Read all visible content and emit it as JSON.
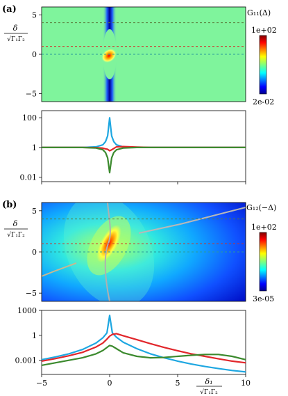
{
  "panel_labels": [
    "(a)",
    "(b)"
  ],
  "ylabel_top": {
    "numerator": "δ",
    "denominator": "√Γ₁Γ₂"
  },
  "xlabel": {
    "numerator": "δ₁",
    "denominator": "√Γ₁Γ₂"
  },
  "colorbar_a": {
    "title": "G₁₁(Δ)",
    "max_label": "1e+02",
    "min_label": "2e-02"
  },
  "colorbar_b": {
    "title": "G₁₂(−Δ)",
    "max_label": "1e+02",
    "min_label": "3e-05"
  },
  "colors": {
    "blue": "#1ea7e1",
    "red": "#e1262b",
    "green": "#3c8a2e",
    "gray": "#a8a8a8",
    "dash_green": "#5a7a3a",
    "dash_red": "#d0302a",
    "dash_teal": "#2a9a9a"
  },
  "chart_data": [
    {
      "type": "heatmap",
      "panel": "(a)",
      "quantity": "G₁₁(Δ)",
      "xlim": [
        -5,
        10
      ],
      "ylim": [
        -6,
        6
      ],
      "yticks": [
        -5,
        0,
        5
      ],
      "color_scale": "log",
      "color_range": [
        0.02,
        100
      ],
      "dashed_lines_y": [
        4,
        1,
        0
      ],
      "colormap": "jet"
    },
    {
      "type": "line",
      "panel": "(a) lower",
      "ylog": true,
      "ylim": [
        0.005,
        300
      ],
      "yticks": [
        0.01,
        1,
        100
      ],
      "ytick_labels": [
        "0.01",
        "1",
        "100"
      ],
      "x": [
        -5,
        -3,
        -2,
        -1,
        -0.5,
        -0.3,
        -0.15,
        0,
        0.15,
        0.3,
        0.5,
        1,
        2,
        3,
        5,
        7.5,
        10
      ],
      "series": [
        {
          "color": "blue",
          "values": [
            1,
            1,
            1,
            1.1,
            1.5,
            2.5,
            6,
            100,
            6,
            2.5,
            1.5,
            1.1,
            1,
            1,
            1,
            1,
            1
          ]
        },
        {
          "color": "red",
          "values": [
            1,
            1,
            1,
            0.98,
            0.9,
            0.8,
            0.75,
            0.6,
            0.7,
            0.85,
            1.1,
            1.15,
            1.05,
            1,
            1,
            1,
            1
          ]
        },
        {
          "color": "green",
          "values": [
            1,
            1,
            1,
            0.92,
            0.7,
            0.45,
            0.2,
            0.02,
            0.2,
            0.45,
            0.7,
            0.92,
            1,
            1,
            1,
            1,
            1
          ]
        }
      ]
    },
    {
      "type": "heatmap",
      "panel": "(b)",
      "quantity": "G₁₂(−Δ)",
      "xlim": [
        -5,
        10
      ],
      "ylim": [
        -6,
        6
      ],
      "yticks": [
        -5,
        0,
        5
      ],
      "color_scale": "log",
      "color_range": [
        3e-05,
        100
      ],
      "dashed_lines_y": [
        4,
        1,
        0
      ],
      "colormap": "jet"
    },
    {
      "type": "line",
      "panel": "(b) lower",
      "ylog": true,
      "ylim": [
        2e-05,
        1000
      ],
      "yticks": [
        0.001,
        1,
        1000
      ],
      "ytick_labels": [
        "0.001",
        "1",
        "1000"
      ],
      "xticks": [
        -5,
        0,
        5,
        10
      ],
      "x": [
        -5,
        -4,
        -3,
        -2,
        -1,
        -0.5,
        -0.2,
        0,
        0.2,
        0.5,
        1,
        2,
        3,
        4,
        5,
        6,
        7,
        8,
        9,
        10
      ],
      "series": [
        {
          "color": "blue",
          "values": [
            0.0012,
            0.0025,
            0.006,
            0.02,
            0.12,
            0.5,
            2,
            250,
            2,
            0.6,
            0.15,
            0.025,
            0.006,
            0.002,
            0.0008,
            0.00035,
            0.00018,
            0.0001,
            6e-05,
            4e-05
          ]
        },
        {
          "color": "red",
          "values": [
            0.0008,
            0.0016,
            0.0035,
            0.009,
            0.04,
            0.12,
            0.35,
            0.8,
            1.3,
            1.6,
            0.9,
            0.3,
            0.1,
            0.035,
            0.014,
            0.006,
            0.003,
            0.0015,
            0.0008,
            0.0005
          ]
        },
        {
          "color": "green",
          "values": [
            0.00025,
            0.0005,
            0.001,
            0.002,
            0.006,
            0.015,
            0.035,
            0.06,
            0.05,
            0.025,
            0.008,
            0.003,
            0.002,
            0.0022,
            0.003,
            0.004,
            0.005,
            0.005,
            0.003,
            0.0012
          ]
        }
      ]
    }
  ]
}
